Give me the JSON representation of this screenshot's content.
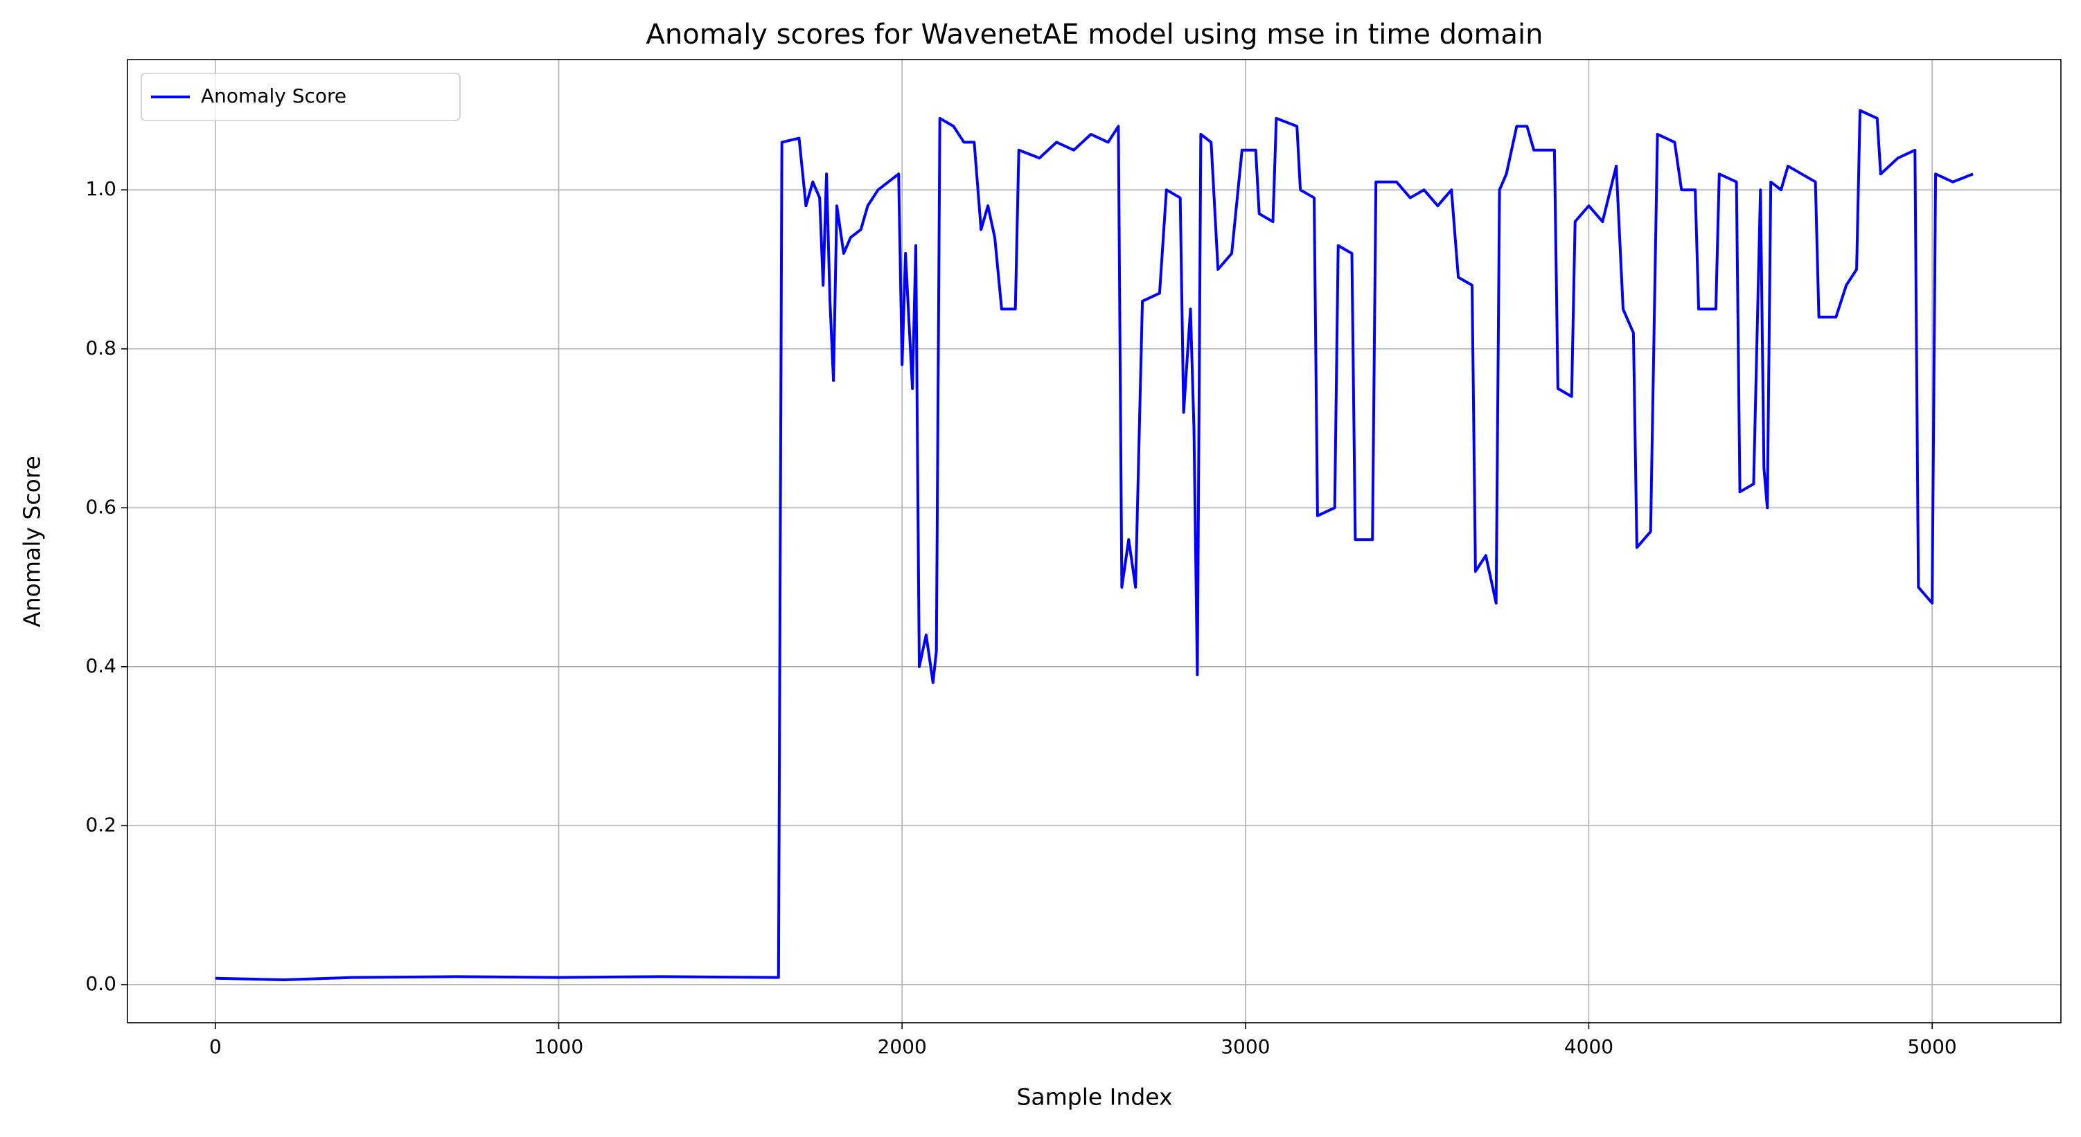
{
  "chart_data": {
    "type": "line",
    "title": "Anomaly scores for WavenetAE model using mse in time domain",
    "xlabel": "Sample Index",
    "ylabel": "Anomaly Score",
    "x": [
      0,
      200,
      400,
      700,
      1000,
      1300,
      1640,
      1650,
      1700,
      1720,
      1740,
      1760,
      1770,
      1780,
      1790,
      1800,
      1810,
      1830,
      1850,
      1880,
      1900,
      1930,
      1960,
      1990,
      2000,
      2010,
      2030,
      2040,
      2050,
      2070,
      2090,
      2100,
      2110,
      2150,
      2180,
      2210,
      2230,
      2250,
      2270,
      2290,
      2330,
      2340,
      2400,
      2450,
      2500,
      2550,
      2600,
      2630,
      2640,
      2660,
      2680,
      2700,
      2750,
      2770,
      2810,
      2820,
      2840,
      2850,
      2860,
      2870,
      2900,
      2920,
      2960,
      2990,
      3030,
      3040,
      3080,
      3090,
      3150,
      3160,
      3200,
      3210,
      3260,
      3270,
      3310,
      3320,
      3370,
      3380,
      3440,
      3480,
      3520,
      3560,
      3600,
      3620,
      3660,
      3670,
      3700,
      3730,
      3740,
      3760,
      3790,
      3820,
      3840,
      3900,
      3910,
      3950,
      3960,
      4000,
      4040,
      4080,
      4100,
      4130,
      4140,
      4180,
      4200,
      4250,
      4270,
      4310,
      4320,
      4370,
      4380,
      4430,
      4440,
      4480,
      4500,
      4510,
      4520,
      4530,
      4560,
      4580,
      4620,
      4660,
      4670,
      4720,
      4750,
      4780,
      4790,
      4840,
      4850,
      4900,
      4950,
      4960,
      5000,
      5010,
      5060,
      5119
    ],
    "series": [
      {
        "name": "Anomaly Score",
        "color": "#0000ff",
        "values": [
          0.008,
          0.006,
          0.009,
          0.01,
          0.009,
          0.01,
          0.009,
          1.06,
          1.065,
          0.98,
          1.01,
          0.99,
          0.88,
          1.02,
          0.86,
          0.76,
          0.98,
          0.92,
          0.94,
          0.95,
          0.98,
          1.0,
          1.01,
          1.02,
          0.78,
          0.92,
          0.75,
          0.93,
          0.4,
          0.44,
          0.38,
          0.42,
          1.09,
          1.08,
          1.06,
          1.06,
          0.95,
          0.98,
          0.94,
          0.85,
          0.85,
          1.05,
          1.04,
          1.06,
          1.05,
          1.07,
          1.06,
          1.08,
          0.5,
          0.56,
          0.5,
          0.86,
          0.87,
          1.0,
          0.99,
          0.72,
          0.85,
          0.7,
          0.39,
          1.07,
          1.06,
          0.9,
          0.92,
          1.05,
          1.05,
          0.97,
          0.96,
          1.09,
          1.08,
          1.0,
          0.99,
          0.59,
          0.6,
          0.93,
          0.92,
          0.56,
          0.56,
          1.01,
          1.01,
          0.99,
          1.0,
          0.98,
          1.0,
          0.89,
          0.88,
          0.52,
          0.54,
          0.48,
          1.0,
          1.02,
          1.08,
          1.08,
          1.05,
          1.05,
          0.75,
          0.74,
          0.96,
          0.98,
          0.96,
          1.03,
          0.85,
          0.82,
          0.55,
          0.57,
          1.07,
          1.06,
          1.0,
          1.0,
          0.85,
          0.85,
          1.02,
          1.01,
          0.62,
          0.63,
          1.0,
          0.65,
          0.6,
          1.01,
          1.0,
          1.03,
          1.02,
          1.01,
          0.84,
          0.84,
          0.88,
          0.9,
          1.1,
          1.09,
          1.02,
          1.04,
          1.05,
          0.5,
          0.48,
          1.02,
          1.01,
          1.02
        ]
      }
    ],
    "xlim": [
      -256,
      5375
    ],
    "ylim": [
      -0.048,
      1.164
    ],
    "xticks": [
      0,
      1000,
      2000,
      3000,
      4000,
      5000
    ],
    "yticks": [
      {
        "value": 0,
        "label": "0.0"
      },
      0.2,
      0.4,
      0.6,
      0.8,
      {
        "value": 1,
        "label": "1.0"
      }
    ],
    "grid": true,
    "legend": "upper left"
  }
}
